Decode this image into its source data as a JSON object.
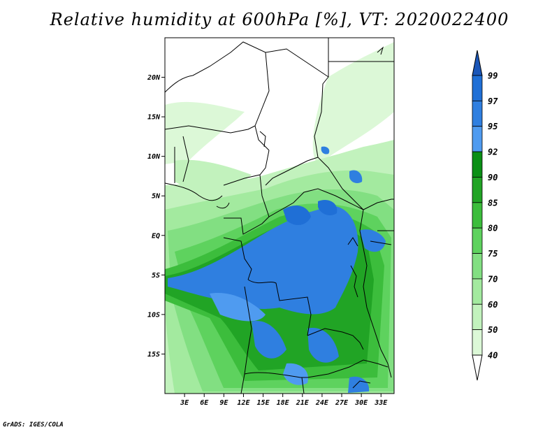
{
  "title": "Relative humidity at 600hPa [%], VT: 2020022400",
  "credit": "GrADS: IGES/COLA",
  "map": {
    "lon_range": [
      0,
      35
    ],
    "lat_range": [
      -20,
      25
    ],
    "lat_ticks": [
      {
        "value": 20,
        "label": "20N"
      },
      {
        "value": 15,
        "label": "15N"
      },
      {
        "value": 10,
        "label": "10N"
      },
      {
        "value": 5,
        "label": "5N"
      },
      {
        "value": 0,
        "label": "EQ"
      },
      {
        "value": -5,
        "label": "5S"
      },
      {
        "value": -10,
        "label": "10S"
      },
      {
        "value": -15,
        "label": "15S"
      }
    ],
    "lon_ticks": [
      {
        "value": 3,
        "label": "3E"
      },
      {
        "value": 6,
        "label": "6E"
      },
      {
        "value": 9,
        "label": "9E"
      },
      {
        "value": 12,
        "label": "12E"
      },
      {
        "value": 15,
        "label": "15E"
      },
      {
        "value": 18,
        "label": "18E"
      },
      {
        "value": 21,
        "label": "21E"
      },
      {
        "value": 24,
        "label": "24E"
      },
      {
        "value": 27,
        "label": "27E"
      },
      {
        "value": 30,
        "label": "30E"
      },
      {
        "value": 33,
        "label": "33E"
      }
    ]
  },
  "colorbar": {
    "levels": [
      {
        "label": "99",
        "color": "#1f6fd6"
      },
      {
        "label": "97",
        "color": "#2f7fe0"
      },
      {
        "label": "95",
        "color": "#4f9bf0"
      },
      {
        "label": "92",
        "color": "#0a8f15"
      },
      {
        "label": "90",
        "color": "#21a425"
      },
      {
        "label": "85",
        "color": "#3cbd3c"
      },
      {
        "label": "80",
        "color": "#5ed25e"
      },
      {
        "label": "75",
        "color": "#82df82"
      },
      {
        "label": "70",
        "color": "#a3ea9f"
      },
      {
        "label": "60",
        "color": "#c2f2bd"
      },
      {
        "label": "50",
        "color": "#dcf8d7"
      },
      {
        "label": "40",
        "color": "#effcec"
      }
    ],
    "top_color": "#1a56b8",
    "bottom_color": "#ffffff"
  }
}
